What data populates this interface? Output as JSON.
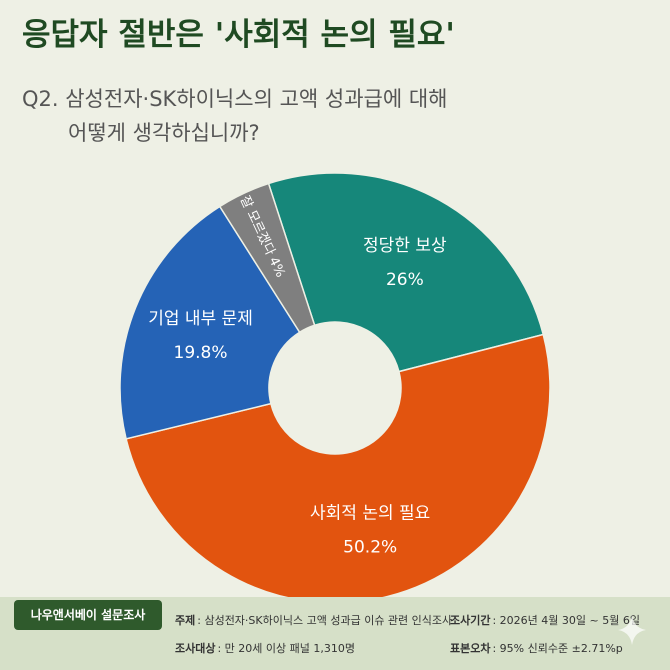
{
  "chart_data": {
    "type": "donut",
    "title": "응답자 절반은 '사회적 논의 필요'",
    "subtitle": [
      "Q2. 삼성전자·SK하이닉스의 고액 성과급에 대해",
      "어떻게 생각하십니까?"
    ],
    "categories": [
      "정당한 보상",
      "사회적 논의 필요",
      "기업 내부 문제",
      "잘 모르겠다"
    ],
    "values": [
      26,
      50.2,
      19.8,
      4
    ],
    "value_labels": [
      "26%",
      "50.2%",
      "19.8%",
      "4%"
    ],
    "colors": [
      "#16877a",
      "#e2540f",
      "#2563b6",
      "#7f7f7f"
    ]
  },
  "footer": {
    "source": "나우앤서베이 설문조사",
    "items": [
      {
        "label": "주제",
        "text": ": 삼성전자·SK하이닉스 고액 성과급 이슈 관련 인식조사"
      },
      {
        "label": "조사기간",
        "text": ": 2026년 4월 30일 ~ 5월 6일"
      },
      {
        "label": "조사대상",
        "text": ": 만 20세 이상 패널 1,310명"
      },
      {
        "label": "표본오차",
        "text": ": 95% 신뢰수준 ±2.71%p"
      }
    ]
  }
}
